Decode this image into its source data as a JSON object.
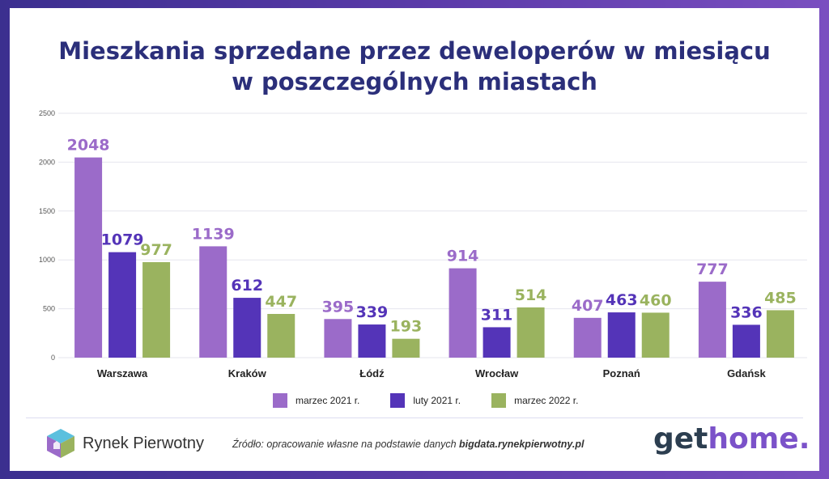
{
  "title_line1": "Mieszkania sprzedane przez deweloperów w miesiącu",
  "title_line2": "w poszczególnych miastach",
  "chart_data": {
    "type": "bar",
    "title": "Mieszkania sprzedane przez deweloperów w miesiącu w poszczególnych miastach",
    "categories": [
      "Warszawa",
      "Kraków",
      "Łódź",
      "Wrocław",
      "Poznań",
      "Gdańsk"
    ],
    "series": [
      {
        "name": "marzec 2021 r.",
        "color": "#9b6bc9",
        "values": [
          2048,
          1139,
          395,
          914,
          407,
          777
        ]
      },
      {
        "name": "luty 2021 r.",
        "color": "#5434b8",
        "values": [
          1079,
          612,
          339,
          311,
          463,
          336
        ]
      },
      {
        "name": "marzec  2022 r.",
        "color": "#9ab35f",
        "values": [
          977,
          447,
          193,
          514,
          460,
          485
        ]
      }
    ],
    "ylim": [
      0,
      2500
    ],
    "yticks": [
      0,
      500,
      1000,
      1500,
      2000,
      2500
    ],
    "grid": true,
    "legend": "bottom"
  },
  "logo_left_text": "Rynek Pierwotny",
  "source_prefix": "Źródło: opracowanie własne na podstawie danych ",
  "source_bold": "bigdata.rynekpierwotny.pl",
  "logo_right_get": "get",
  "logo_right_home": "home."
}
